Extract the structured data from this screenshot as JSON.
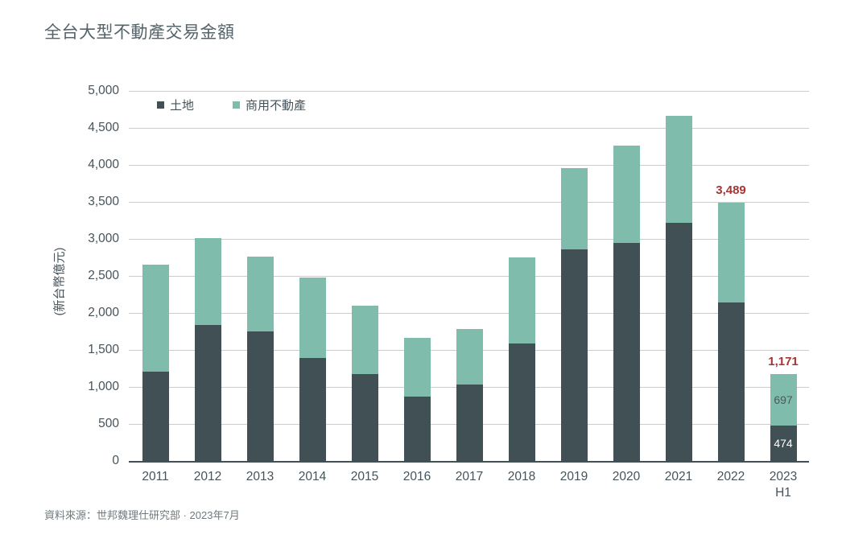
{
  "page": {
    "title": "全台大型不動產交易金額",
    "source": "資料來源：世邦魏理仕研究部 · 2023年7月"
  },
  "colors": {
    "land": "#415055",
    "commercial": "#80bcab",
    "annotation_red": "#a53535",
    "grid": "#c9cdcd",
    "axis_text": "#46535a",
    "title_text": "#54646a",
    "source_text": "#6f7a7e"
  },
  "chart_data": {
    "type": "bar",
    "stacked": true,
    "title": "全台大型不動產交易金額",
    "ylabel": "(新台幣億元)",
    "xlabel": "",
    "ylim": [
      0,
      5000
    ],
    "ytick_step": 500,
    "grid": true,
    "legend_position": "top-left",
    "categories": [
      "2011",
      "2012",
      "2013",
      "2014",
      "2015",
      "2016",
      "2017",
      "2018",
      "2019",
      "2020",
      "2021",
      "2022",
      "2023 H1"
    ],
    "series": [
      {
        "name": "土地",
        "color": "#415055",
        "values": [
          1210,
          1840,
          1750,
          1390,
          1170,
          870,
          1030,
          1590,
          2855,
          2950,
          3220,
          2140,
          474
        ]
      },
      {
        "name": "商用不動產",
        "color": "#80bcab",
        "values": [
          1440,
          1170,
          1010,
          1090,
          930,
          790,
          750,
          1165,
          1100,
          1310,
          1440,
          1349,
          697
        ]
      }
    ],
    "annotations": [
      {
        "category": "2022",
        "text": "3,489",
        "color": "#a53535"
      },
      {
        "category": "2023 H1",
        "text": "1,171",
        "color": "#a53535"
      }
    ],
    "segment_labels": [
      {
        "category": "2023 H1",
        "series": "商用不動產",
        "text": "697",
        "color": "#4c585c"
      },
      {
        "category": "2023 H1",
        "series": "土地",
        "text": "474",
        "color": "#ffffff"
      }
    ]
  }
}
